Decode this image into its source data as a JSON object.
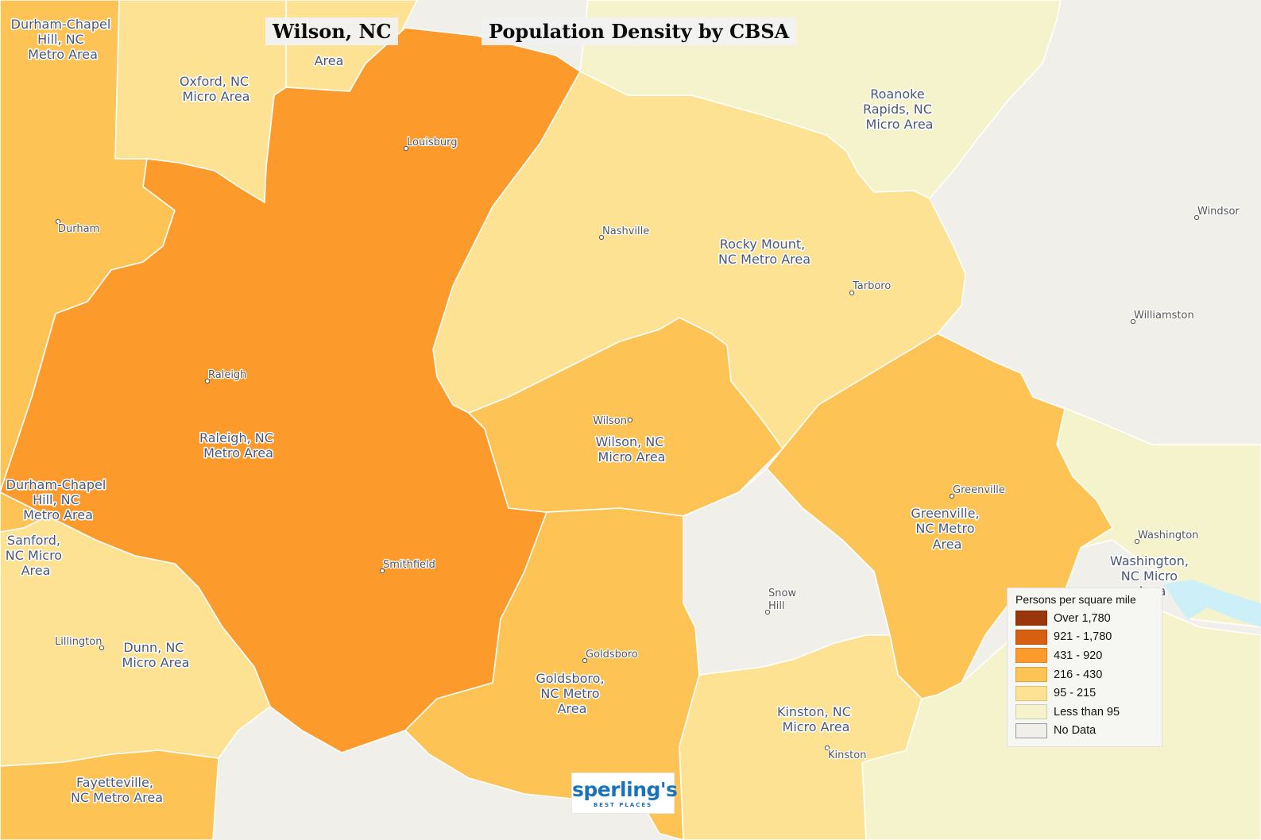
{
  "title": "Population Density by CBSA",
  "place": "Wilson, NC",
  "legend": {
    "title": "Persons per square mile",
    "classes": [
      {
        "label": "Over 1,780",
        "color": "#99360a"
      },
      {
        "label": "921 - 1,780",
        "color": "#d65f11"
      },
      {
        "label": "431 - 920",
        "color": "#fc9a2b"
      },
      {
        "label": "216 - 430",
        "color": "#fdc355"
      },
      {
        "label": "95 - 215",
        "color": "#fee293"
      },
      {
        "label": "Less than 95",
        "color": "#f4f3cc"
      },
      {
        "label": "No Data",
        "color": "#f0efea"
      }
    ]
  },
  "regions": [
    {
      "name": "Raleigh, NC Metro Area",
      "class": "431 - 920"
    },
    {
      "name": "Durham-Chapel Hill, NC Metro Area",
      "class": "216 - 430"
    },
    {
      "name": "Oxford, NC Micro Area",
      "class": "95 - 215"
    },
    {
      "name": "Henderson, NC Micro Area",
      "class": "95 - 215"
    },
    {
      "name": "Roanoke Rapids, NC Micro Area",
      "class": "Less than 95"
    },
    {
      "name": "Rocky Mount, NC Metro Area",
      "class": "95 - 215"
    },
    {
      "name": "Wilson, NC Micro Area",
      "class": "216 - 430"
    },
    {
      "name": "Greenville, NC Metro Area",
      "class": "216 - 430"
    },
    {
      "name": "Goldsboro, NC Metro Area",
      "class": "216 - 430"
    },
    {
      "name": "Kinston, NC Micro Area",
      "class": "95 - 215"
    },
    {
      "name": "Washington, NC Micro Area",
      "class": "Less than 95"
    },
    {
      "name": "Sanford, NC Micro Area",
      "class": "216 - 430"
    },
    {
      "name": "Dunn, NC Micro Area",
      "class": "95 - 215"
    },
    {
      "name": "Fayetteville, NC Metro Area",
      "class": "216 - 430"
    },
    {
      "name": "Snow Hill",
      "class": "No Data"
    }
  ],
  "area_labels": {
    "durham_top": [
      "Durham-Chapel",
      "Hill, NC",
      "Metro Area"
    ],
    "henderson": [
      "Area"
    ],
    "oxford": [
      "Oxford, NC",
      "Micro Area"
    ],
    "roanoke": [
      "Roanoke",
      "Rapids, NC",
      "Micro Area"
    ],
    "rocky_mount": [
      "Rocky Mount,",
      "NC Metro Area"
    ],
    "raleigh": [
      "Raleigh, NC",
      "Metro Area"
    ],
    "wilson": [
      "Wilson, NC",
      "Micro Area"
    ],
    "durham_left": [
      "Durham-Chapel",
      "Hill, NC",
      "Metro Area"
    ],
    "sanford": [
      "Sanford,",
      "NC Micro",
      "Area"
    ],
    "greenville": [
      "Greenville,",
      "NC Metro",
      "Area"
    ],
    "washington": [
      "Washington,",
      "NC Micro",
      "Area"
    ],
    "dunn": [
      "Dunn, NC",
      "Micro Area"
    ],
    "goldsboro": [
      "Goldsboro,",
      "NC Metro",
      "Area"
    ],
    "kinston": [
      "Kinston, NC",
      "Micro Area"
    ],
    "fayetteville": [
      "Fayetteville,",
      "NC Metro Area"
    ]
  },
  "cities": {
    "louisburg": "Louisburg",
    "durham": "Durham",
    "nashville": "Nashville",
    "tarboro": "Tarboro",
    "windsor": "Windsor",
    "williamston": "Williamston",
    "raleigh": "Raleigh",
    "wilson": "Wilson",
    "greenville": "Greenville",
    "washington": "Washington",
    "smithfield": "Smithfield",
    "snow_hill": [
      "Snow",
      "Hill"
    ],
    "lillington": "Lillington",
    "goldsboro": "Goldsboro",
    "kinston": "Kinston"
  },
  "logo": {
    "word": "sperling's",
    "sub": "BEST PLACES"
  }
}
